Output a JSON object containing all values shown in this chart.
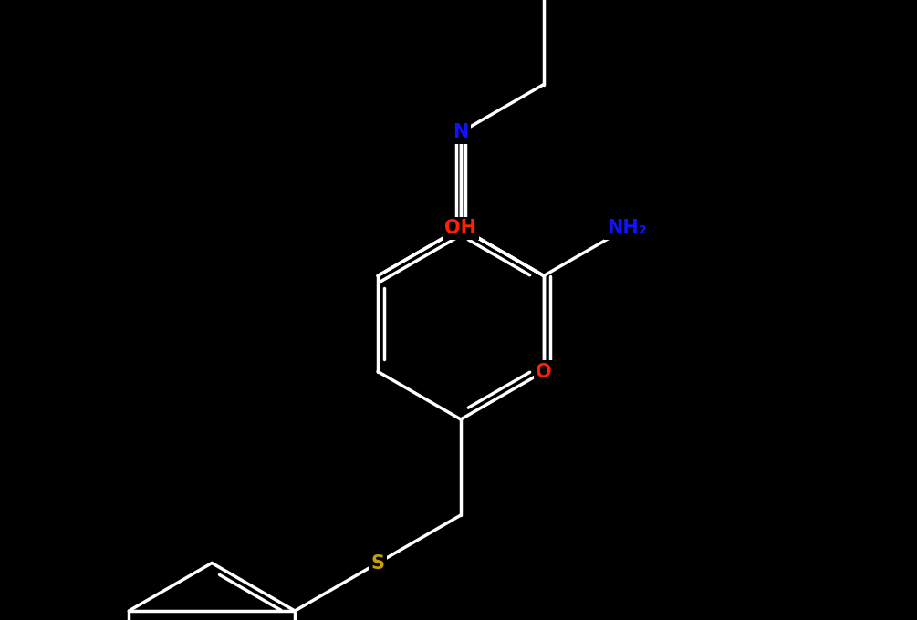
{
  "background": "#000000",
  "bond_color": "#ffffff",
  "lw": 2.5,
  "colors": {
    "O": "#ff2200",
    "N": "#1111ff",
    "S": "#c8a000",
    "default": "#ffffff"
  },
  "fs": 15,
  "fig_w": 10.05,
  "fig_h": 6.8,
  "BL": 1.05
}
